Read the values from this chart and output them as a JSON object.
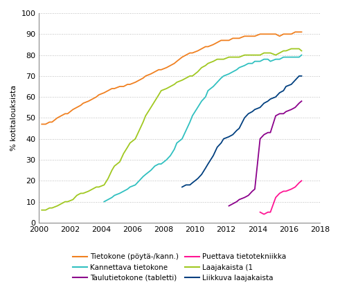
{
  "title": "",
  "ylabel": "% kotitalouksista",
  "xlim": [
    2000,
    2018
  ],
  "ylim": [
    0,
    100
  ],
  "yticks": [
    0,
    10,
    20,
    30,
    40,
    50,
    60,
    70,
    80,
    90,
    100
  ],
  "xticks": [
    2000,
    2002,
    2004,
    2006,
    2008,
    2010,
    2012,
    2014,
    2016,
    2018
  ],
  "series": {
    "Tietokone (pöytä-/kann.)": {
      "color": "#F08020",
      "x": [
        2000.17,
        2000.42,
        2000.67,
        2000.83,
        2001.17,
        2001.42,
        2001.67,
        2001.83,
        2002.17,
        2002.42,
        2002.67,
        2002.83,
        2003.17,
        2003.42,
        2003.67,
        2003.83,
        2004.17,
        2004.42,
        2004.67,
        2004.83,
        2005.17,
        2005.42,
        2005.67,
        2005.83,
        2006.17,
        2006.42,
        2006.67,
        2006.83,
        2007.17,
        2007.42,
        2007.67,
        2007.83,
        2008.17,
        2008.42,
        2008.67,
        2008.83,
        2009.17,
        2009.42,
        2009.67,
        2009.83,
        2010.17,
        2010.42,
        2010.67,
        2010.83,
        2011.17,
        2011.42,
        2011.67,
        2011.83,
        2012.17,
        2012.42,
        2012.67,
        2012.83,
        2013.17,
        2013.42,
        2013.67,
        2013.83,
        2014.17,
        2014.42,
        2014.67,
        2014.83,
        2015.17,
        2015.42,
        2015.67,
        2015.83,
        2016.17,
        2016.42,
        2016.67,
        2016.83
      ],
      "y": [
        47,
        47,
        48,
        48,
        50,
        51,
        52,
        52,
        54,
        55,
        56,
        57,
        58,
        59,
        60,
        61,
        62,
        63,
        64,
        64,
        65,
        65,
        66,
        66,
        67,
        68,
        69,
        70,
        71,
        72,
        73,
        73,
        74,
        75,
        76,
        77,
        79,
        80,
        81,
        81,
        82,
        83,
        84,
        84,
        85,
        86,
        87,
        87,
        87,
        88,
        88,
        88,
        89,
        89,
        89,
        89,
        90,
        90,
        90,
        90,
        90,
        89,
        90,
        90,
        90,
        91,
        91,
        91
      ]
    },
    "Kannettava tietokone": {
      "color": "#30C0C0",
      "x": [
        2004.17,
        2004.42,
        2004.67,
        2004.83,
        2005.17,
        2005.42,
        2005.67,
        2005.83,
        2006.17,
        2006.42,
        2006.67,
        2006.83,
        2007.17,
        2007.42,
        2007.67,
        2007.83,
        2008.17,
        2008.42,
        2008.67,
        2008.83,
        2009.17,
        2009.42,
        2009.67,
        2009.83,
        2010.17,
        2010.42,
        2010.67,
        2010.83,
        2011.17,
        2011.42,
        2011.67,
        2011.83,
        2012.17,
        2012.42,
        2012.67,
        2012.83,
        2013.17,
        2013.42,
        2013.67,
        2013.83,
        2014.17,
        2014.42,
        2014.67,
        2014.83,
        2015.17,
        2015.42,
        2015.67,
        2015.83,
        2016.17,
        2016.42,
        2016.67,
        2016.83
      ],
      "y": [
        10,
        11,
        12,
        13,
        14,
        15,
        16,
        17,
        18,
        20,
        22,
        23,
        25,
        27,
        28,
        28,
        30,
        32,
        35,
        38,
        40,
        44,
        48,
        51,
        55,
        58,
        60,
        63,
        65,
        67,
        69,
        70,
        71,
        72,
        73,
        74,
        75,
        76,
        76,
        77,
        77,
        78,
        78,
        77,
        78,
        78,
        79,
        79,
        79,
        79,
        79,
        80
      ]
    },
    "Taulutietokone (tabletti)": {
      "color": "#8B008B",
      "x": [
        2012.17,
        2012.42,
        2012.67,
        2012.83,
        2013.17,
        2013.42,
        2013.67,
        2013.83,
        2014.17,
        2014.42,
        2014.67,
        2014.83,
        2015.17,
        2015.42,
        2015.67,
        2015.83,
        2016.17,
        2016.42,
        2016.67,
        2016.83
      ],
      "y": [
        8,
        9,
        10,
        11,
        12,
        13,
        15,
        16,
        40,
        42,
        43,
        43,
        51,
        52,
        52,
        53,
        54,
        55,
        57,
        58
      ]
    },
    "Puettava tietotekniikka": {
      "color": "#FF1493",
      "x": [
        2014.17,
        2014.42,
        2014.67,
        2014.83,
        2015.17,
        2015.42,
        2015.67,
        2015.83,
        2016.17,
        2016.42,
        2016.67,
        2016.83
      ],
      "y": [
        5,
        4,
        5,
        5,
        12,
        14,
        15,
        15,
        16,
        17,
        19,
        20
      ]
    },
    "Laajakaista (1": {
      "color": "#A0C820",
      "x": [
        2000.17,
        2000.42,
        2000.67,
        2000.83,
        2001.17,
        2001.42,
        2001.67,
        2001.83,
        2002.17,
        2002.42,
        2002.67,
        2002.83,
        2003.17,
        2003.42,
        2003.67,
        2003.83,
        2004.17,
        2004.42,
        2004.67,
        2004.83,
        2005.17,
        2005.42,
        2005.67,
        2005.83,
        2006.17,
        2006.42,
        2006.67,
        2006.83,
        2007.17,
        2007.42,
        2007.67,
        2007.83,
        2008.17,
        2008.42,
        2008.67,
        2008.83,
        2009.17,
        2009.42,
        2009.67,
        2009.83,
        2010.17,
        2010.42,
        2010.67,
        2010.83,
        2011.17,
        2011.42,
        2011.67,
        2011.83,
        2012.17,
        2012.42,
        2012.67,
        2012.83,
        2013.17,
        2013.42,
        2013.67,
        2013.83,
        2014.17,
        2014.42,
        2014.67,
        2014.83,
        2015.17,
        2015.42,
        2015.67,
        2015.83,
        2016.17,
        2016.42,
        2016.67,
        2016.83
      ],
      "y": [
        6,
        6,
        7,
        7,
        8,
        9,
        10,
        10,
        11,
        13,
        14,
        14,
        15,
        16,
        17,
        17,
        18,
        21,
        25,
        27,
        29,
        33,
        36,
        38,
        40,
        44,
        48,
        51,
        55,
        58,
        61,
        63,
        64,
        65,
        66,
        67,
        68,
        69,
        70,
        70,
        72,
        74,
        75,
        76,
        77,
        78,
        78,
        78,
        79,
        79,
        79,
        79,
        80,
        80,
        80,
        80,
        80,
        81,
        81,
        81,
        80,
        81,
        82,
        82,
        83,
        83,
        83,
        82
      ]
    },
    "Liikkuva laajakaista": {
      "color": "#003F7F",
      "x": [
        2009.17,
        2009.42,
        2009.67,
        2009.83,
        2010.17,
        2010.42,
        2010.67,
        2010.83,
        2011.17,
        2011.42,
        2011.67,
        2011.83,
        2012.17,
        2012.42,
        2012.67,
        2012.83,
        2013.17,
        2013.42,
        2013.67,
        2013.83,
        2014.17,
        2014.42,
        2014.67,
        2014.83,
        2015.17,
        2015.42,
        2015.67,
        2015.83,
        2016.17,
        2016.42,
        2016.67,
        2016.83
      ],
      "y": [
        17,
        18,
        18,
        19,
        21,
        23,
        26,
        28,
        32,
        36,
        38,
        40,
        41,
        42,
        44,
        45,
        50,
        52,
        53,
        54,
        55,
        57,
        58,
        59,
        60,
        62,
        63,
        65,
        66,
        68,
        70,
        70
      ]
    }
  },
  "legend_order_col1": [
    "Tietokone (pöytä-/kann.)",
    "Taulutietokone (tabletti)",
    "Laajakaista (1"
  ],
  "legend_order_col2": [
    "Kannettava tietokone",
    "Puettava tietotekniikka",
    "Liikkuva laajakaista"
  ]
}
